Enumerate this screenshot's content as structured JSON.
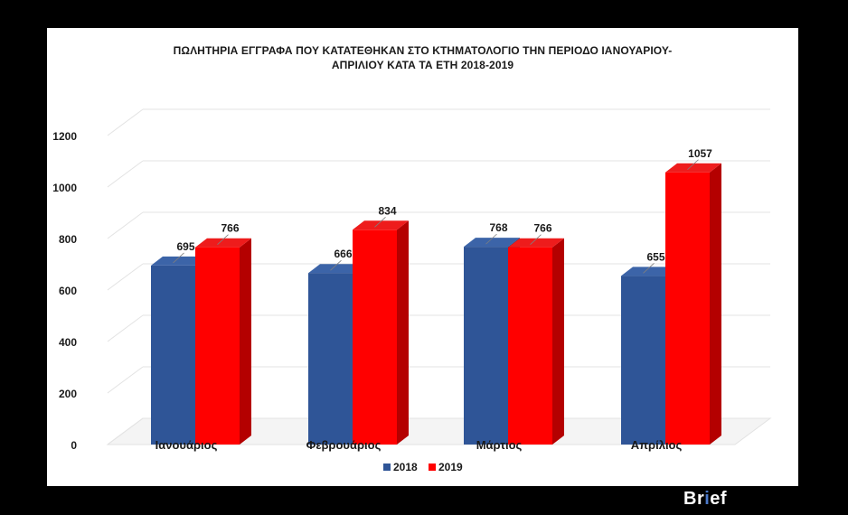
{
  "chart_data": {
    "type": "bar",
    "title_lines": [
      "ΠΩΛΗΤΗΡΙΑ ΕΓΓΡΑΦΑ ΠΟΥ ΚΑΤΑΤΕΘΗΚΑΝ ΣΤΟ ΚΤΗΜΑΤΟΛΟΓΙΟ ΤΗΝ ΠΕΡΙΟΔΟ ΙΑΝΟΥΑΡΙΟΥ-",
      "ΑΠΡΙΛΙΟΥ ΚΑΤΑ ΤΑ ΕΤΗ 2018-2019"
    ],
    "categories": [
      "Ιανουάριος",
      "Φεβρουάριος",
      "Μάρτιος",
      "Απρίλιος"
    ],
    "series": [
      {
        "name": "2018",
        "values": [
          695,
          666,
          768,
          655
        ],
        "color": "#2f5597",
        "side_color": "#1f3b6e",
        "top_color": "#3c64a8"
      },
      {
        "name": "2019",
        "values": [
          766,
          834,
          766,
          1057
        ],
        "color": "#ff0000",
        "side_color": "#b40000",
        "top_color": "#ee1c1c"
      }
    ],
    "ylim": [
      0,
      1200
    ],
    "yticks": [
      0,
      200,
      400,
      600,
      800,
      1000,
      1200
    ],
    "grid": true,
    "legend_position": "bottom",
    "style": "3d-clustered-column"
  },
  "brand": {
    "part1": "Br",
    "part2": "i",
    "part3": "ef"
  }
}
